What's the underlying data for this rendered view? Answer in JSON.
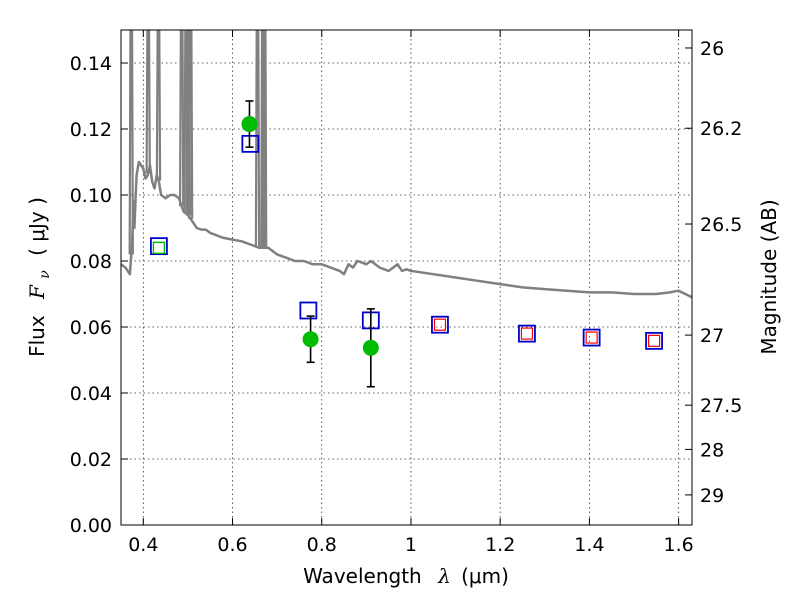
{
  "chart_data": {
    "type": "scatter",
    "xlabel_text": "Wavelength",
    "xlabel_symbol": "λ",
    "xlabel_unit": "(μm)",
    "ylabel_text": "Flux",
    "ylabel_symbol": "F",
    "ylabel_subscript": "ν",
    "ylabel_unit": "( μJy )",
    "y2label": "Magnitude (AB)",
    "xlim": [
      0.35,
      1.63
    ],
    "ylim": [
      0.0,
      0.15
    ],
    "grid": true,
    "x_ticks": [
      {
        "value": 0.4,
        "label": "0.4"
      },
      {
        "value": 0.6,
        "label": "0.6"
      },
      {
        "value": 0.8,
        "label": "0.8"
      },
      {
        "value": 1.0,
        "label": "1"
      },
      {
        "value": 1.2,
        "label": "1.2"
      },
      {
        "value": 1.4,
        "label": "1.4"
      },
      {
        "value": 1.6,
        "label": "1.6"
      }
    ],
    "y_ticks": [
      {
        "value": 0.0,
        "label": "0.00"
      },
      {
        "value": 0.02,
        "label": "0.02"
      },
      {
        "value": 0.04,
        "label": "0.04"
      },
      {
        "value": 0.06,
        "label": "0.06"
      },
      {
        "value": 0.08,
        "label": "0.08"
      },
      {
        "value": 0.1,
        "label": "0.10"
      },
      {
        "value": 0.12,
        "label": "0.12"
      },
      {
        "value": 0.14,
        "label": "0.14"
      }
    ],
    "y2_ticks": [
      {
        "value": 26,
        "label": "26"
      },
      {
        "value": 26.2,
        "label": "26.2"
      },
      {
        "value": 26.5,
        "label": "26.5"
      },
      {
        "value": 27,
        "label": "27"
      },
      {
        "value": 27.5,
        "label": "27.5"
      },
      {
        "value": 28,
        "label": "28"
      },
      {
        "value": 29,
        "label": "29"
      }
    ],
    "series": [
      {
        "kind": "model-spectrum",
        "color": "#808080",
        "x": [
          0.35,
          0.36,
          0.37,
          0.375,
          0.378,
          0.38,
          0.383,
          0.385,
          0.39,
          0.4,
          0.405,
          0.41,
          0.415,
          0.42,
          0.425,
          0.43,
          0.435,
          0.44,
          0.45,
          0.46,
          0.47,
          0.48,
          0.485,
          0.49,
          0.5,
          0.51,
          0.52,
          0.53,
          0.54,
          0.55,
          0.56,
          0.57,
          0.58,
          0.6,
          0.62,
          0.64,
          0.66,
          0.68,
          0.7,
          0.72,
          0.74,
          0.76,
          0.78,
          0.8,
          0.82,
          0.84,
          0.85,
          0.86,
          0.87,
          0.88,
          0.89,
          0.9,
          0.91,
          0.92,
          0.93,
          0.94,
          0.95,
          0.96,
          0.97,
          0.98,
          0.99,
          1.0,
          1.05,
          1.1,
          1.15,
          1.2,
          1.25,
          1.3,
          1.35,
          1.4,
          1.45,
          1.5,
          1.55,
          1.58,
          1.6,
          1.63
        ],
        "y": [
          0.079,
          0.078,
          0.076,
          0.086,
          0.098,
          0.09,
          0.1,
          0.106,
          0.11,
          0.108,
          0.105,
          0.106,
          0.109,
          0.104,
          0.102,
          0.106,
          0.104,
          0.1,
          0.099,
          0.1,
          0.1,
          0.099,
          0.097,
          0.095,
          0.094,
          0.092,
          0.09,
          0.0895,
          0.0895,
          0.0885,
          0.088,
          0.0875,
          0.087,
          0.0865,
          0.086,
          0.085,
          0.084,
          0.084,
          0.082,
          0.081,
          0.08,
          0.08,
          0.079,
          0.079,
          0.078,
          0.077,
          0.076,
          0.079,
          0.078,
          0.08,
          0.0795,
          0.079,
          0.08,
          0.079,
          0.078,
          0.0775,
          0.077,
          0.078,
          0.079,
          0.077,
          0.0775,
          0.077,
          0.076,
          0.075,
          0.074,
          0.073,
          0.072,
          0.0715,
          0.071,
          0.0705,
          0.0705,
          0.07,
          0.07,
          0.0705,
          0.071,
          0.069
        ],
        "emission_lines": [
          {
            "x": 0.373,
            "y_top": 0.15
          },
          {
            "x": 0.411,
            "y_top": 0.15
          },
          {
            "x": 0.434,
            "y_top": 0.15
          },
          {
            "x": 0.486,
            "y_top": 0.15
          },
          {
            "x": 0.496,
            "y_top": 0.15
          },
          {
            "x": 0.501,
            "y_top": 0.15
          },
          {
            "x": 0.506,
            "y_top": 0.15
          },
          {
            "x": 0.656,
            "y_top": 0.15
          },
          {
            "x": 0.668,
            "y_top": 0.15
          },
          {
            "x": 0.672,
            "y_top": 0.15
          }
        ]
      },
      {
        "kind": "observed-flux",
        "color": "#00bb00",
        "points": [
          {
            "x": 0.435,
            "y": 0.084,
            "err": null
          },
          {
            "x": 0.638,
            "y": 0.1215,
            "err": 0.007
          },
          {
            "x": 0.775,
            "y": 0.0563,
            "err": 0.007
          },
          {
            "x": 0.91,
            "y": 0.0537,
            "err": 0.0118
          }
        ]
      },
      {
        "kind": "model-band-flux",
        "color": "#0000cc",
        "points": [
          {
            "x": 0.435,
            "y": 0.0845
          },
          {
            "x": 0.64,
            "y": 0.1155
          },
          {
            "x": 0.77,
            "y": 0.065
          },
          {
            "x": 0.91,
            "y": 0.062
          },
          {
            "x": 1.065,
            "y": 0.0607
          },
          {
            "x": 1.26,
            "y": 0.058
          },
          {
            "x": 1.405,
            "y": 0.0568
          },
          {
            "x": 1.545,
            "y": 0.0558
          }
        ]
      },
      {
        "kind": "model-nir-flux",
        "color": "#ff0000",
        "points": [
          {
            "x": 1.065,
            "y": 0.0607
          },
          {
            "x": 1.26,
            "y": 0.058
          },
          {
            "x": 1.405,
            "y": 0.0568
          },
          {
            "x": 1.545,
            "y": 0.0558
          }
        ]
      }
    ]
  }
}
